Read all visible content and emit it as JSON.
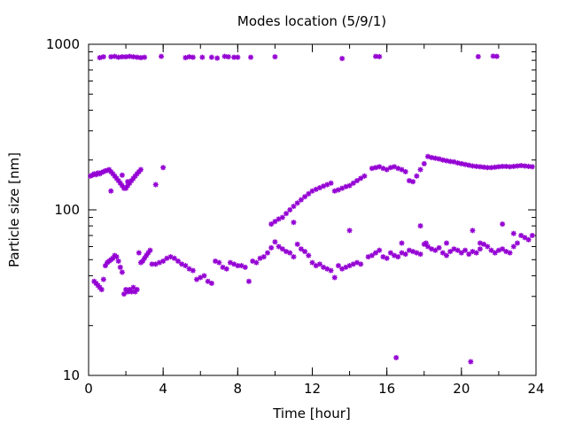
{
  "chart_data": {
    "type": "scatter",
    "title": "Modes location (5/9/1)",
    "xlabel": "Time [hour]",
    "ylabel": "Particle size [nm]",
    "xlim": [
      0,
      24
    ],
    "ylim": [
      10,
      1000
    ],
    "yscale": "log",
    "xticks": [
      0,
      4,
      8,
      12,
      16,
      20,
      24
    ],
    "xtick_labels": [
      "0",
      "4",
      "8",
      "12",
      "16",
      "20",
      "24"
    ],
    "yticks": [
      10,
      100,
      1000
    ],
    "ytick_labels": [
      "10",
      "100",
      "1000"
    ],
    "grid": false,
    "marker_color": "#9400d3",
    "series": [
      {
        "points": [
          [
            0.3,
            37
          ],
          [
            0.4,
            36
          ],
          [
            0.5,
            35
          ],
          [
            0.6,
            34
          ],
          [
            0.7,
            33
          ],
          [
            0.8,
            38
          ],
          [
            0.9,
            46
          ],
          [
            1.0,
            48
          ],
          [
            1.1,
            49
          ],
          [
            1.2,
            50
          ],
          [
            1.3,
            51
          ],
          [
            1.4,
            53
          ],
          [
            1.5,
            52
          ],
          [
            1.6,
            49
          ],
          [
            1.7,
            45
          ],
          [
            1.8,
            42
          ],
          [
            1.9,
            31
          ],
          [
            2.0,
            33
          ],
          [
            2.1,
            32
          ],
          [
            2.2,
            33
          ],
          [
            2.3,
            32
          ],
          [
            2.4,
            34
          ],
          [
            2.5,
            32
          ],
          [
            2.6,
            33
          ],
          [
            2.7,
            55
          ],
          [
            2.8,
            48
          ],
          [
            2.9,
            49
          ],
          [
            3.0,
            51
          ],
          [
            3.1,
            53
          ],
          [
            3.2,
            55
          ],
          [
            3.3,
            57
          ],
          [
            3.4,
            47
          ],
          [
            3.6,
            47
          ],
          [
            3.8,
            48
          ],
          [
            4.0,
            49
          ],
          [
            4.2,
            51
          ],
          [
            4.4,
            52
          ],
          [
            4.6,
            51
          ],
          [
            4.8,
            49
          ],
          [
            5.0,
            47
          ],
          [
            5.2,
            46
          ],
          [
            5.4,
            44
          ],
          [
            5.6,
            43
          ],
          [
            5.8,
            38
          ],
          [
            6.0,
            39
          ],
          [
            6.2,
            40
          ],
          [
            6.4,
            37
          ],
          [
            6.6,
            36
          ],
          [
            6.8,
            49
          ],
          [
            7.0,
            48
          ],
          [
            7.2,
            45
          ],
          [
            7.4,
            44
          ],
          [
            7.6,
            48
          ],
          [
            7.8,
            47
          ],
          [
            8.0,
            46
          ],
          [
            8.2,
            46
          ],
          [
            8.4,
            45
          ],
          [
            8.6,
            37
          ],
          [
            8.8,
            49
          ],
          [
            9.0,
            48
          ],
          [
            9.2,
            51
          ],
          [
            9.4,
            52
          ],
          [
            9.6,
            55
          ],
          [
            9.8,
            59
          ],
          [
            10.0,
            64
          ],
          [
            10.2,
            60
          ],
          [
            10.4,
            58
          ],
          [
            10.6,
            56
          ],
          [
            10.8,
            55
          ],
          [
            11.0,
            52
          ],
          [
            11.2,
            62
          ],
          [
            11.4,
            58
          ],
          [
            11.6,
            56
          ],
          [
            11.8,
            53
          ],
          [
            12.0,
            48
          ],
          [
            12.2,
            46
          ],
          [
            12.4,
            47
          ],
          [
            12.6,
            45
          ],
          [
            12.8,
            44
          ],
          [
            13.0,
            43
          ],
          [
            13.2,
            39
          ],
          [
            13.4,
            46
          ],
          [
            13.6,
            44
          ],
          [
            13.8,
            45
          ],
          [
            14.0,
            46
          ],
          [
            14.2,
            47
          ],
          [
            14.4,
            48
          ],
          [
            14.6,
            47
          ],
          [
            15.0,
            52
          ],
          [
            15.2,
            53
          ],
          [
            15.4,
            55
          ],
          [
            15.6,
            57
          ],
          [
            15.8,
            52
          ],
          [
            16.0,
            51
          ],
          [
            16.2,
            55
          ],
          [
            16.4,
            53
          ],
          [
            16.6,
            52
          ],
          [
            16.8,
            55
          ],
          [
            17.0,
            54
          ],
          [
            17.2,
            57
          ],
          [
            17.4,
            56
          ],
          [
            17.6,
            55
          ],
          [
            17.8,
            54
          ],
          [
            18.0,
            62
          ],
          [
            18.2,
            60
          ],
          [
            18.4,
            58
          ],
          [
            18.6,
            57
          ],
          [
            18.8,
            59
          ],
          [
            19.0,
            55
          ],
          [
            19.2,
            53
          ],
          [
            19.4,
            56
          ],
          [
            19.6,
            58
          ],
          [
            19.8,
            57
          ],
          [
            20.0,
            55
          ],
          [
            20.2,
            57
          ],
          [
            20.4,
            54
          ],
          [
            20.6,
            56
          ],
          [
            20.8,
            55
          ],
          [
            21.0,
            58
          ],
          [
            21.2,
            62
          ],
          [
            21.4,
            60
          ],
          [
            21.6,
            57
          ],
          [
            21.8,
            55
          ],
          [
            22.0,
            57
          ],
          [
            22.2,
            58
          ],
          [
            22.4,
            56
          ],
          [
            22.6,
            55
          ],
          [
            22.8,
            60
          ],
          [
            23.0,
            63
          ],
          [
            23.2,
            70
          ],
          [
            23.4,
            68
          ],
          [
            23.6,
            66
          ],
          [
            23.8,
            70
          ],
          [
            16.8,
            63
          ],
          [
            18.1,
            63
          ],
          [
            19.2,
            63
          ],
          [
            21.0,
            63
          ],
          [
            20.6,
            75
          ],
          [
            22.2,
            82
          ],
          [
            22.8,
            72
          ],
          [
            16.5,
            12.8
          ],
          [
            20.5,
            12.1
          ],
          [
            17.8,
            80
          ],
          [
            14.0,
            75
          ],
          [
            11.0,
            84
          ]
        ]
      },
      {
        "points": [
          [
            0.1,
            160
          ],
          [
            0.2,
            162
          ],
          [
            0.3,
            165
          ],
          [
            0.4,
            163
          ],
          [
            0.5,
            167
          ],
          [
            0.6,
            165
          ],
          [
            0.7,
            168
          ],
          [
            0.8,
            170
          ],
          [
            0.9,
            172
          ],
          [
            1.0,
            173
          ],
          [
            1.1,
            175
          ],
          [
            1.2,
            170
          ],
          [
            1.3,
            165
          ],
          [
            1.4,
            160
          ],
          [
            1.5,
            155
          ],
          [
            1.6,
            150
          ],
          [
            1.7,
            145
          ],
          [
            1.8,
            140
          ],
          [
            1.9,
            135
          ],
          [
            2.0,
            135
          ],
          [
            2.1,
            140
          ],
          [
            2.2,
            145
          ],
          [
            2.3,
            150
          ],
          [
            2.4,
            155
          ],
          [
            2.5,
            160
          ],
          [
            2.6,
            165
          ],
          [
            2.7,
            170
          ],
          [
            2.8,
            175
          ],
          [
            1.8,
            162
          ],
          [
            2.1,
            148
          ],
          [
            1.2,
            130
          ],
          [
            3.6,
            142
          ],
          [
            4.0,
            180
          ],
          [
            9.8,
            82
          ],
          [
            10.0,
            85
          ],
          [
            10.2,
            88
          ],
          [
            10.4,
            90
          ],
          [
            10.6,
            95
          ],
          [
            10.8,
            100
          ],
          [
            11.0,
            105
          ],
          [
            11.2,
            110
          ],
          [
            11.4,
            115
          ],
          [
            11.6,
            120
          ],
          [
            11.8,
            125
          ],
          [
            12.0,
            130
          ],
          [
            12.2,
            133
          ],
          [
            12.4,
            136
          ],
          [
            12.6,
            139
          ],
          [
            12.8,
            142
          ],
          [
            13.0,
            145
          ],
          [
            13.2,
            130
          ],
          [
            13.4,
            132
          ],
          [
            13.6,
            135
          ],
          [
            13.8,
            138
          ],
          [
            14.0,
            140
          ],
          [
            14.2,
            145
          ],
          [
            14.4,
            150
          ],
          [
            14.6,
            155
          ],
          [
            14.8,
            160
          ],
          [
            15.2,
            178
          ],
          [
            15.4,
            180
          ],
          [
            15.6,
            182
          ],
          [
            15.8,
            178
          ],
          [
            16.0,
            175
          ],
          [
            16.2,
            180
          ],
          [
            16.4,
            182
          ],
          [
            16.6,
            178
          ],
          [
            16.8,
            175
          ],
          [
            17.0,
            170
          ],
          [
            17.2,
            150
          ],
          [
            17.4,
            148
          ],
          [
            17.6,
            160
          ],
          [
            17.8,
            175
          ],
          [
            18.0,
            190
          ],
          [
            18.2,
            210
          ],
          [
            18.4,
            207
          ],
          [
            18.6,
            205
          ],
          [
            18.8,
            203
          ],
          [
            19.0,
            200
          ],
          [
            19.2,
            198
          ],
          [
            19.4,
            196
          ],
          [
            19.6,
            195
          ],
          [
            19.8,
            192
          ],
          [
            20.0,
            190
          ],
          [
            20.2,
            188
          ],
          [
            20.4,
            186
          ],
          [
            20.6,
            184
          ],
          [
            20.8,
            183
          ],
          [
            21.0,
            182
          ],
          [
            21.2,
            181
          ],
          [
            21.4,
            180
          ],
          [
            21.6,
            180
          ],
          [
            21.8,
            181
          ],
          [
            22.0,
            182
          ],
          [
            22.2,
            183
          ],
          [
            22.4,
            183
          ],
          [
            22.6,
            182
          ],
          [
            22.8,
            183
          ],
          [
            23.0,
            184
          ],
          [
            23.2,
            185
          ],
          [
            23.4,
            184
          ],
          [
            23.6,
            183
          ],
          [
            23.8,
            182
          ]
        ]
      },
      {
        "points": [
          [
            0.6,
            830
          ],
          [
            0.8,
            840
          ],
          [
            1.2,
            840
          ],
          [
            1.4,
            845
          ],
          [
            1.6,
            835
          ],
          [
            1.8,
            840
          ],
          [
            2.0,
            840
          ],
          [
            2.2,
            845
          ],
          [
            2.4,
            840
          ],
          [
            2.6,
            835
          ],
          [
            2.8,
            830
          ],
          [
            3.0,
            835
          ],
          [
            3.9,
            845
          ],
          [
            5.2,
            830
          ],
          [
            5.4,
            840
          ],
          [
            5.6,
            835
          ],
          [
            6.1,
            835
          ],
          [
            6.6,
            835
          ],
          [
            6.9,
            825
          ],
          [
            7.3,
            845
          ],
          [
            7.5,
            840
          ],
          [
            7.8,
            835
          ],
          [
            8.0,
            835
          ],
          [
            8.7,
            835
          ],
          [
            10.0,
            840
          ],
          [
            13.6,
            820
          ],
          [
            15.4,
            845
          ],
          [
            15.6,
            842
          ],
          [
            20.9,
            842
          ],
          [
            21.7,
            848
          ],
          [
            21.9,
            845
          ]
        ]
      }
    ]
  }
}
